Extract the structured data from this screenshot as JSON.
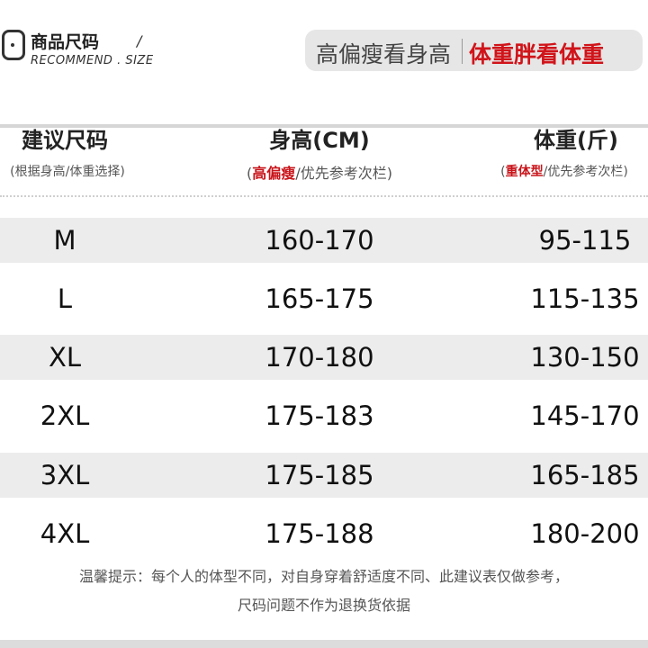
{
  "header": {
    "title": "商品尺码",
    "slash": "/",
    "subtitle": "RECOMMEND . SIZE",
    "icon": "chat-bubble-icon",
    "pill_left": "高偏瘦看身高",
    "pill_right": "体重胖看体重"
  },
  "table": {
    "columns": [
      {
        "title": "建议尺码",
        "note_pre": "(根据身高/体重选择)",
        "note_red": "",
        "note_post": ""
      },
      {
        "title": "身高(CM)",
        "note_pre": "(",
        "note_red": "高偏瘦",
        "note_post": "/优先参考次栏)"
      },
      {
        "title": "体重(斤)",
        "note_pre": "(",
        "note_red": "重体型",
        "note_post": "/优先参考次栏)"
      }
    ],
    "rows": [
      {
        "size": "M",
        "height": "160-170",
        "weight": "95-115"
      },
      {
        "size": "L",
        "height": "165-175",
        "weight": "115-135"
      },
      {
        "size": "XL",
        "height": "170-180",
        "weight": "130-150"
      },
      {
        "size": "2XL",
        "height": "175-183",
        "weight": "145-170"
      },
      {
        "size": "3XL",
        "height": "175-185",
        "weight": "165-185"
      },
      {
        "size": "4XL",
        "height": "175-188",
        "weight": "180-200"
      }
    ]
  },
  "tip": {
    "line1": "温馨提示：每个人的体型不同，对自身穿着舒适度不同、此建议表仅做参考，",
    "line2": "尺码问题不作为退换货依据"
  },
  "colors": {
    "accent_red": "#c8141a",
    "stripe": "#ececec"
  }
}
